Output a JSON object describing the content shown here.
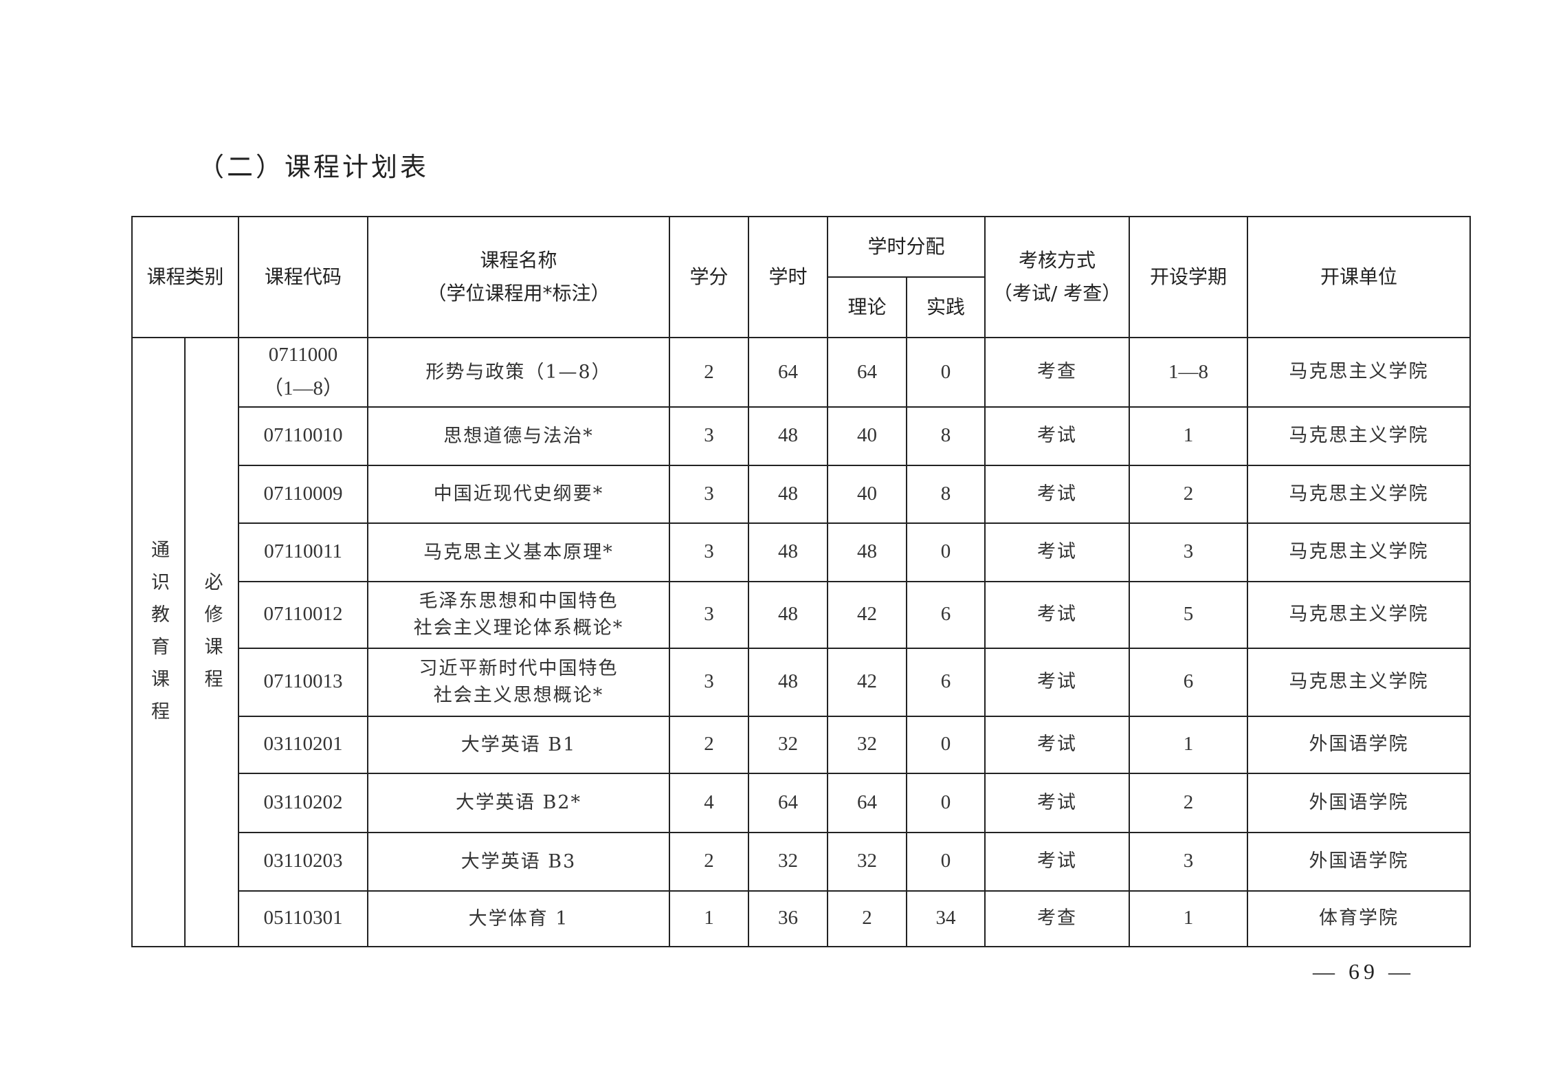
{
  "section_title": "（二）课程计划表",
  "header": {
    "category": "课程类别",
    "code": "课程代码",
    "name_line1": "课程名称",
    "name_line2": "（学位课程用*标注）",
    "credits": "学分",
    "hours": "学时",
    "hours_dist": "学时分配",
    "theory": "理论",
    "practice": "实践",
    "exam_line1": "考核方式",
    "exam_line2": "（考试/ 考查）",
    "semester": "开设学期",
    "unit": "开课单位"
  },
  "category": {
    "main": "通识教育课程",
    "sub": "必修课程"
  },
  "rows": [
    {
      "code1": "0711000",
      "code2": "（1—8）",
      "name1": "形势与政策（1—8）",
      "name2": "",
      "credits": "2",
      "hours": "64",
      "theory": "64",
      "practice": "0",
      "exam": "考查",
      "semester": "1—8",
      "unit": "马克思主义学院"
    },
    {
      "code1": "07110010",
      "code2": "",
      "name1": "思想道德与法治*",
      "name2": "",
      "credits": "3",
      "hours": "48",
      "theory": "40",
      "practice": "8",
      "exam": "考试",
      "semester": "1",
      "unit": "马克思主义学院"
    },
    {
      "code1": "07110009",
      "code2": "",
      "name1": "中国近现代史纲要*",
      "name2": "",
      "credits": "3",
      "hours": "48",
      "theory": "40",
      "practice": "8",
      "exam": "考试",
      "semester": "2",
      "unit": "马克思主义学院"
    },
    {
      "code1": "07110011",
      "code2": "",
      "name1": "马克思主义基本原理*",
      "name2": "",
      "credits": "3",
      "hours": "48",
      "theory": "48",
      "practice": "0",
      "exam": "考试",
      "semester": "3",
      "unit": "马克思主义学院"
    },
    {
      "code1": "07110012",
      "code2": "",
      "name1": "毛泽东思想和中国特色",
      "name2": "社会主义理论体系概论*",
      "credits": "3",
      "hours": "48",
      "theory": "42",
      "practice": "6",
      "exam": "考试",
      "semester": "5",
      "unit": "马克思主义学院"
    },
    {
      "code1": "07110013",
      "code2": "",
      "name1": "习近平新时代中国特色",
      "name2": "社会主义思想概论*",
      "credits": "3",
      "hours": "48",
      "theory": "42",
      "practice": "6",
      "exam": "考试",
      "semester": "6",
      "unit": "马克思主义学院"
    },
    {
      "code1": "03110201",
      "code2": "",
      "name1": "大学英语 B1",
      "name2": "",
      "credits": "2",
      "hours": "32",
      "theory": "32",
      "practice": "0",
      "exam": "考试",
      "semester": "1",
      "unit": "外国语学院"
    },
    {
      "code1": "03110202",
      "code2": "",
      "name1": "大学英语 B2*",
      "name2": "",
      "credits": "4",
      "hours": "64",
      "theory": "64",
      "practice": "0",
      "exam": "考试",
      "semester": "2",
      "unit": "外国语学院"
    },
    {
      "code1": "03110203",
      "code2": "",
      "name1": "大学英语 B3",
      "name2": "",
      "credits": "2",
      "hours": "32",
      "theory": "32",
      "practice": "0",
      "exam": "考试",
      "semester": "3",
      "unit": "外国语学院"
    },
    {
      "code1": "05110301",
      "code2": "",
      "name1": "大学体育 1",
      "name2": "",
      "credits": "1",
      "hours": "36",
      "theory": "2",
      "practice": "34",
      "exam": "考查",
      "semester": "1",
      "unit": "体育学院"
    }
  ],
  "page_number": "— 69 —"
}
